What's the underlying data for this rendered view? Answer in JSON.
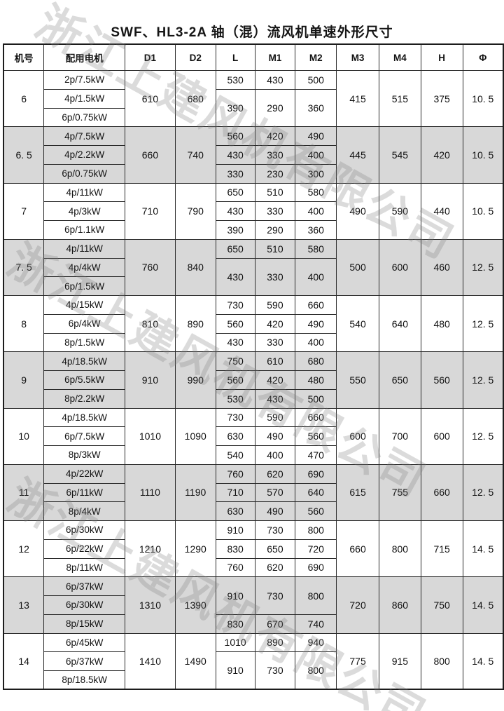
{
  "title": "SWF、HL3-2A 轴（混）流风机单速外形尺寸",
  "watermark": {
    "text": "浙江上建风机有限公司",
    "color": "#7d7d7d"
  },
  "shading_color": "#d8d8d8",
  "table": {
    "columns": [
      "机号",
      "配用电机",
      "D1",
      "D2",
      "L",
      "M1",
      "M2",
      "M3",
      "M4",
      "H",
      "Φ"
    ],
    "groups": [
      {
        "no": "6",
        "shaded": false,
        "motors": [
          "2p/7.5kW",
          "4p/1.5kW",
          "6p/0.75kW"
        ],
        "d1": "610",
        "d2": "680",
        "lm": [
          {
            "span": 1,
            "l": "530",
            "m1": "430",
            "m2": "500"
          },
          {
            "span": 2,
            "l": "390",
            "m1": "290",
            "m2": "360"
          }
        ],
        "m3": "415",
        "m4": "515",
        "h": "375",
        "phi": "10. 5"
      },
      {
        "no": "6. 5",
        "shaded": true,
        "motors": [
          "4p/7.5kW",
          "4p/2.2kW",
          "6p/0.75kW"
        ],
        "d1": "660",
        "d2": "740",
        "lm": [
          {
            "span": 1,
            "l": "560",
            "m1": "420",
            "m2": "490"
          },
          {
            "span": 1,
            "l": "430",
            "m1": "330",
            "m2": "400"
          },
          {
            "span": 1,
            "l": "330",
            "m1": "230",
            "m2": "300"
          }
        ],
        "m3": "445",
        "m4": "545",
        "h": "420",
        "phi": "10. 5"
      },
      {
        "no": "7",
        "shaded": false,
        "motors": [
          "4p/11kW",
          "4p/3kW",
          "6p/1.1kW"
        ],
        "d1": "710",
        "d2": "790",
        "lm": [
          {
            "span": 1,
            "l": "650",
            "m1": "510",
            "m2": "580"
          },
          {
            "span": 1,
            "l": "430",
            "m1": "330",
            "m2": "400"
          },
          {
            "span": 1,
            "l": "390",
            "m1": "290",
            "m2": "360"
          }
        ],
        "m3": "490",
        "m4": "590",
        "h": "440",
        "phi": "10. 5"
      },
      {
        "no": "7. 5",
        "shaded": true,
        "motors": [
          "4p/11kW",
          "4p/4kW",
          "6p/1.5kW"
        ],
        "d1": "760",
        "d2": "840",
        "lm": [
          {
            "span": 1,
            "l": "650",
            "m1": "510",
            "m2": "580"
          },
          {
            "span": 2,
            "l": "430",
            "m1": "330",
            "m2": "400"
          }
        ],
        "m3": "500",
        "m4": "600",
        "h": "460",
        "phi": "12. 5"
      },
      {
        "no": "8",
        "shaded": false,
        "motors": [
          "4p/15kW",
          "6p/4kW",
          "8p/1.5kW"
        ],
        "d1": "810",
        "d2": "890",
        "lm": [
          {
            "span": 1,
            "l": "730",
            "m1": "590",
            "m2": "660"
          },
          {
            "span": 1,
            "l": "560",
            "m1": "420",
            "m2": "490"
          },
          {
            "span": 1,
            "l": "430",
            "m1": "330",
            "m2": "400"
          }
        ],
        "m3": "540",
        "m4": "640",
        "h": "480",
        "phi": "12. 5"
      },
      {
        "no": "9",
        "shaded": true,
        "motors": [
          "4p/18.5kW",
          "6p/5.5kW",
          "8p/2.2kW"
        ],
        "d1": "910",
        "d2": "990",
        "lm": [
          {
            "span": 1,
            "l": "750",
            "m1": "610",
            "m2": "680"
          },
          {
            "span": 1,
            "l": "560",
            "m1": "420",
            "m2": "480"
          },
          {
            "span": 1,
            "l": "530",
            "m1": "430",
            "m2": "500"
          }
        ],
        "m3": "550",
        "m4": "650",
        "h": "560",
        "phi": "12. 5"
      },
      {
        "no": "10",
        "shaded": false,
        "motors": [
          "4p/18.5kW",
          "6p/7.5kW",
          "8p/3kW"
        ],
        "d1": "1010",
        "d2": "1090",
        "lm": [
          {
            "span": 1,
            "l": "730",
            "m1": "590",
            "m2": "660"
          },
          {
            "span": 1,
            "l": "630",
            "m1": "490",
            "m2": "560"
          },
          {
            "span": 1,
            "l": "540",
            "m1": "400",
            "m2": "470"
          }
        ],
        "m3": "600",
        "m4": "700",
        "h": "600",
        "phi": "12. 5"
      },
      {
        "no": "11",
        "shaded": true,
        "motors": [
          "4p/22kW",
          "6p/11kW",
          "8p/4kW"
        ],
        "d1": "1110",
        "d2": "1190",
        "lm": [
          {
            "span": 1,
            "l": "760",
            "m1": "620",
            "m2": "690"
          },
          {
            "span": 1,
            "l": "710",
            "m1": "570",
            "m2": "640"
          },
          {
            "span": 1,
            "l": "630",
            "m1": "490",
            "m2": "560"
          }
        ],
        "m3": "615",
        "m4": "755",
        "h": "660",
        "phi": "12. 5"
      },
      {
        "no": "12",
        "shaded": false,
        "motors": [
          "6p/30kW",
          "6p/22kW",
          "8p/11kW"
        ],
        "d1": "1210",
        "d2": "1290",
        "lm": [
          {
            "span": 1,
            "l": "910",
            "m1": "730",
            "m2": "800"
          },
          {
            "span": 1,
            "l": "830",
            "m1": "650",
            "m2": "720"
          },
          {
            "span": 1,
            "l": "760",
            "m1": "620",
            "m2": "690"
          }
        ],
        "m3": "660",
        "m4": "800",
        "h": "715",
        "phi": "14. 5"
      },
      {
        "no": "13",
        "shaded": true,
        "motors": [
          "6p/37kW",
          "6p/30kW",
          "8p/15kW"
        ],
        "d1": "1310",
        "d2": "1390",
        "lm": [
          {
            "span": 2,
            "l": "910",
            "m1": "730",
            "m2": "800"
          },
          {
            "span": 1,
            "l": "830",
            "m1": "670",
            "m2": "740"
          }
        ],
        "m3": "720",
        "m4": "860",
        "h": "750",
        "phi": "14. 5"
      },
      {
        "no": "14",
        "shaded": false,
        "motors": [
          "6p/45kW",
          "6p/37kW",
          "8p/18.5kW"
        ],
        "d1": "1410",
        "d2": "1490",
        "lm": [
          {
            "span": 1,
            "l": "1010",
            "m1": "890",
            "m2": "940"
          },
          {
            "span": 2,
            "l": "910",
            "m1": "730",
            "m2": "800"
          }
        ],
        "m3": "775",
        "m4": "915",
        "h": "800",
        "phi": "14. 5"
      }
    ]
  }
}
